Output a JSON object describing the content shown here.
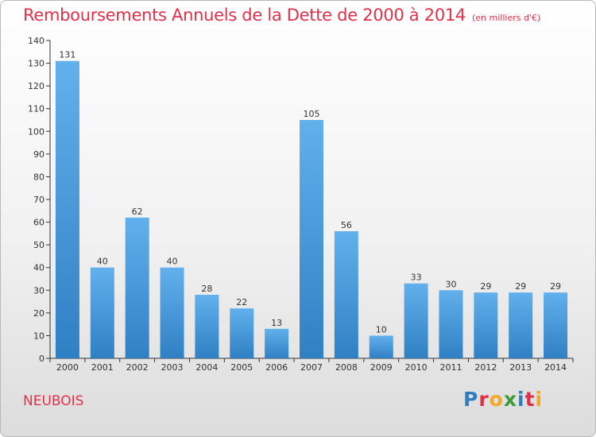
{
  "header": {
    "title": "Remboursements Annuels de la Dette de 2000 à 2014",
    "subtitle": "(en milliers d'€)"
  },
  "footer": {
    "commune": "NEUBOIS",
    "logo": "Proxiti"
  },
  "colors": {
    "title": "#e0314a",
    "bar_light": "#62b0ec",
    "bar_dark": "#2f80c4",
    "logo_letters": [
      "#2c7fc3",
      "#e0314a",
      "#f5a623",
      "#3a9d3a",
      "#2c7fc3",
      "#e0314a",
      "#f5a623"
    ]
  },
  "chart_data": {
    "type": "bar",
    "title": "Remboursements Annuels de la Dette de 2000 à 2014",
    "subtitle": "(en milliers d'€)",
    "categories": [
      "2000",
      "2001",
      "2002",
      "2003",
      "2004",
      "2005",
      "2006",
      "2007",
      "2008",
      "2009",
      "2010",
      "2011",
      "2012",
      "2013",
      "2014"
    ],
    "values": [
      131,
      40,
      62,
      40,
      28,
      22,
      13,
      105,
      56,
      10,
      33,
      30,
      29,
      29,
      29
    ],
    "ylim": [
      0,
      140
    ],
    "yticks": [
      0,
      10,
      20,
      30,
      40,
      50,
      60,
      70,
      80,
      90,
      100,
      110,
      120,
      130,
      140
    ],
    "grid": false,
    "legend": "none",
    "data_labels": true
  }
}
